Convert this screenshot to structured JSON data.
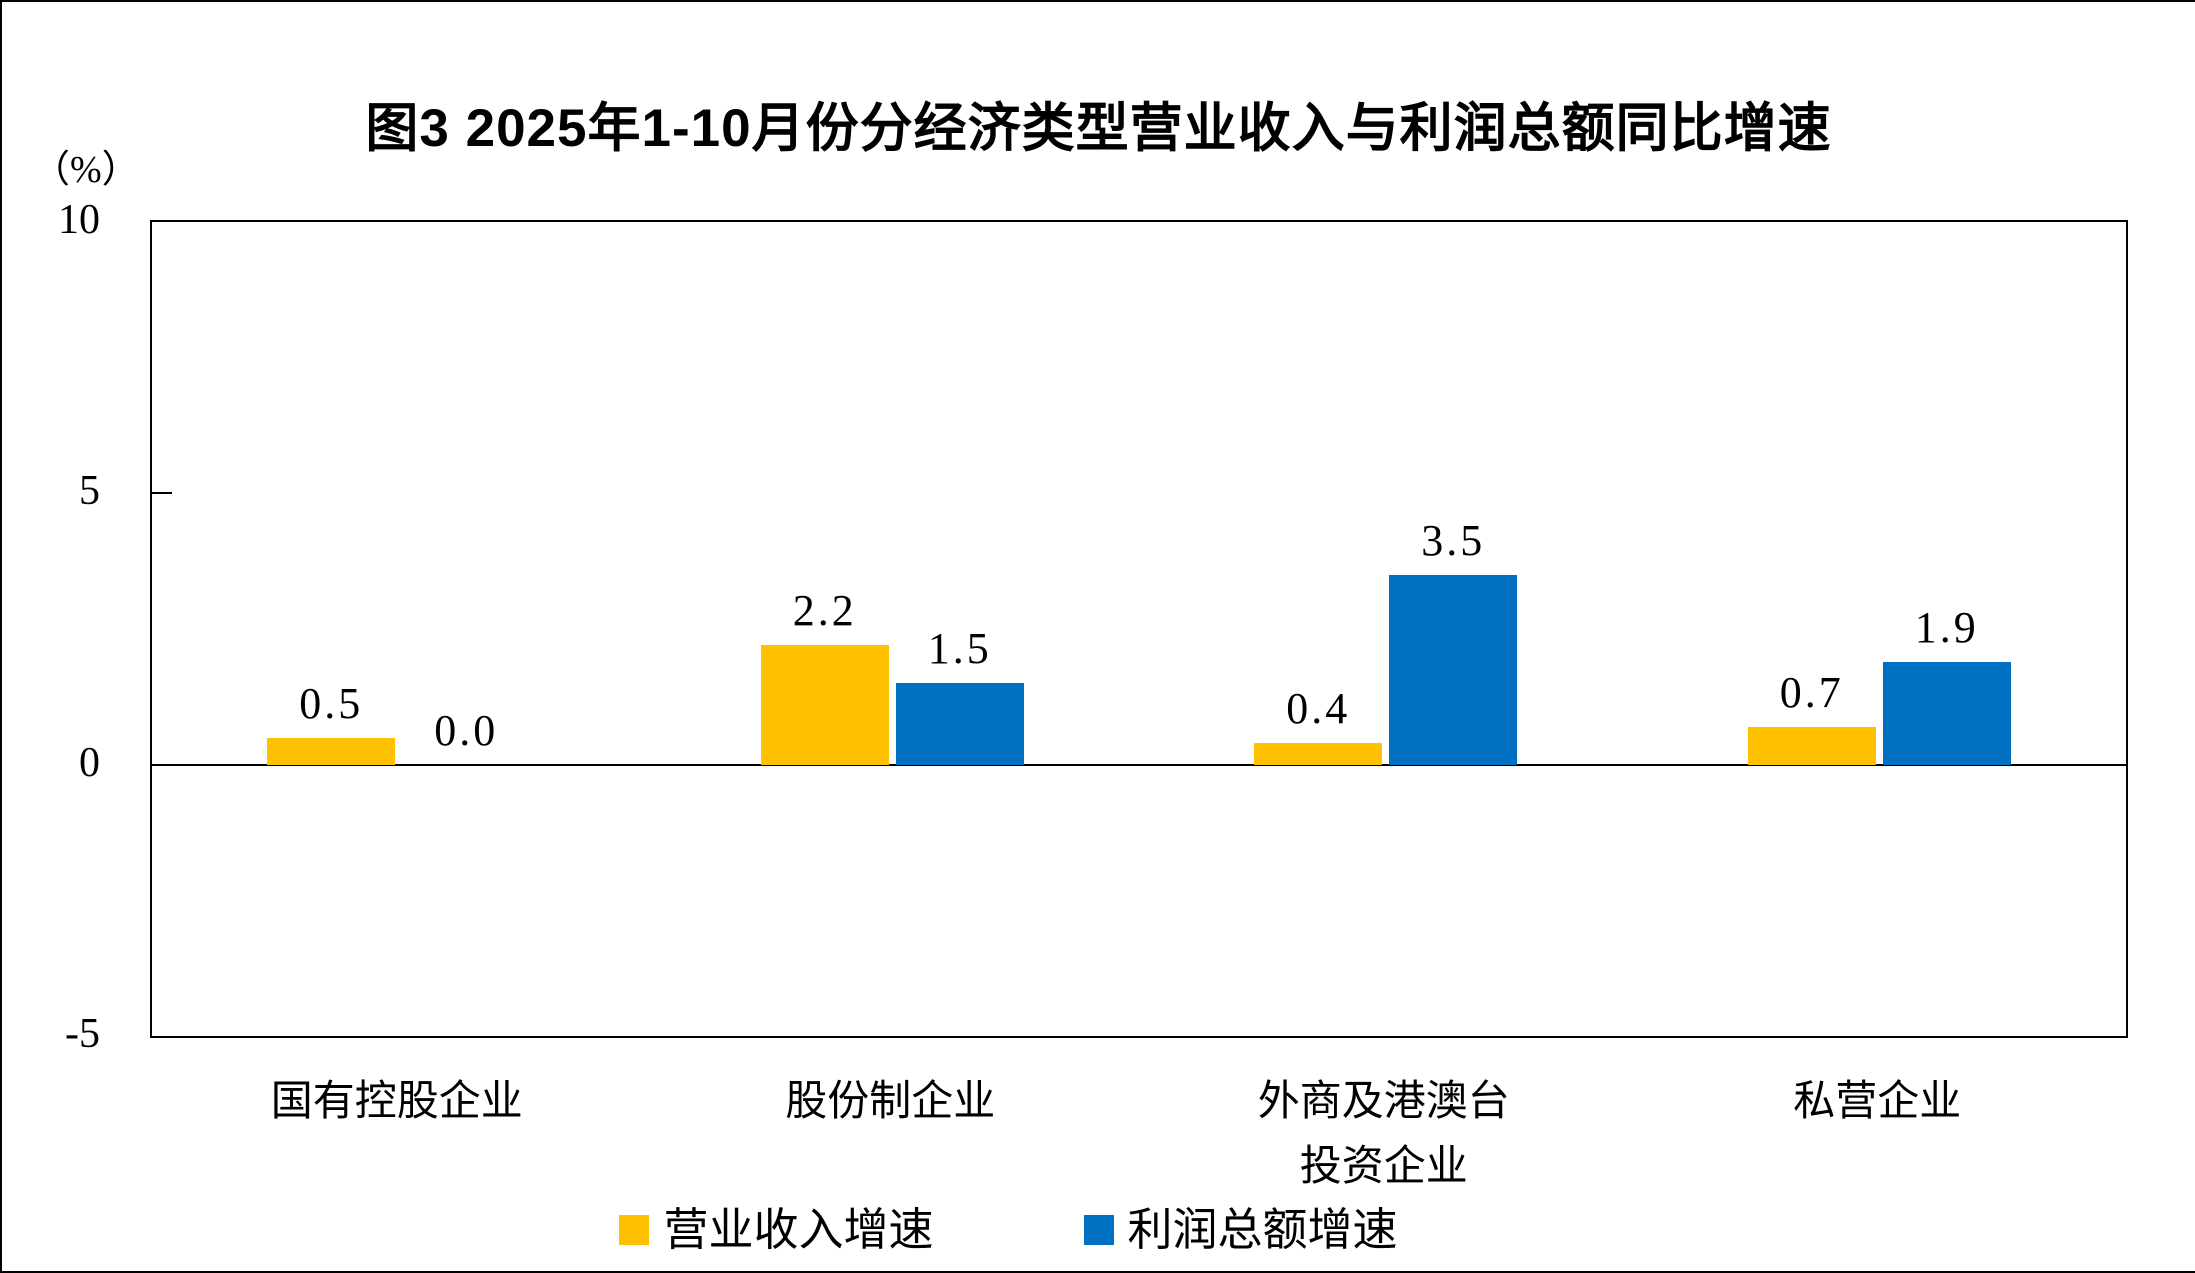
{
  "title": "图3  2025年1-10月份分经济类型营业收入与利润总额同比增速",
  "unit_label": "（%）",
  "colors": {
    "revenue_series": "#FFC000",
    "profit_series": "#0070C0",
    "axis": "#000000"
  },
  "legend": {
    "items": [
      {
        "label": "营业收入增速"
      },
      {
        "label": "利润总额增速"
      }
    ]
  },
  "chart_data": {
    "type": "bar",
    "title": "图3  2025年1-10月份分经济类型营业收入与利润总额同比增速",
    "categories": [
      "国有控股企业",
      "股份制企业",
      "外商及港澳台\n投资企业",
      "私营企业"
    ],
    "series": [
      {
        "name": "营业收入增速",
        "color": "#FFC000",
        "values": [
          0.5,
          2.2,
          0.4,
          0.7
        ],
        "labels": [
          "0.5",
          "2.2",
          "0.4",
          "0.7"
        ]
      },
      {
        "name": "利润总额增速",
        "color": "#0070C0",
        "values": [
          0.0,
          1.5,
          3.5,
          1.9
        ],
        "labels": [
          "0.0",
          "1.5",
          "3.5",
          "1.9"
        ]
      }
    ],
    "ylabel": "（%）",
    "yticks": [
      10,
      5,
      0,
      -5
    ],
    "ytick_labels": [
      "10",
      "5",
      "0",
      "-5"
    ],
    "ylim": [
      -5,
      10
    ],
    "grid": false,
    "legend_position": "bottom",
    "data_labels": true
  }
}
